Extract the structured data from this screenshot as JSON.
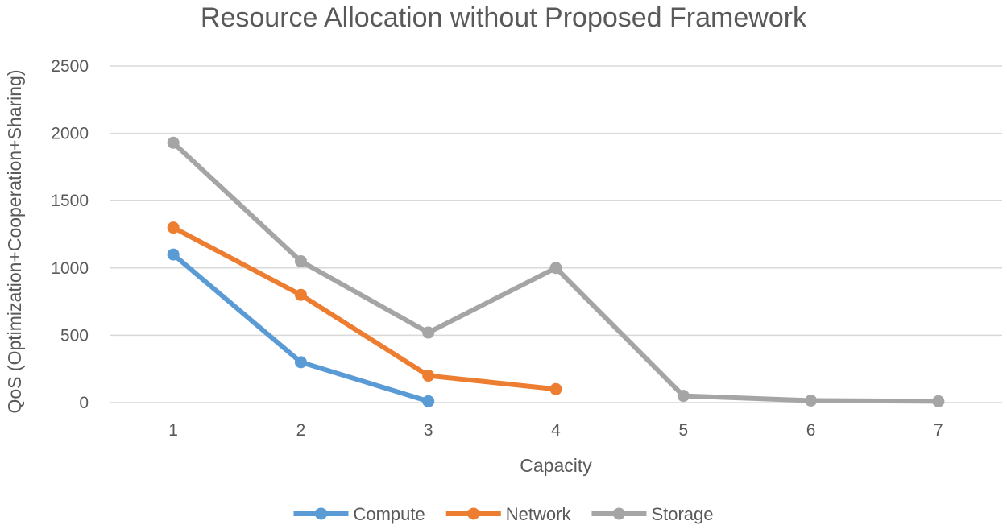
{
  "chart_data": {
    "type": "line",
    "title": "Resource Allocation without Proposed Framework",
    "xlabel": "Capacity",
    "ylabel": "QoS (Optimization+Cooperation+Sharing)",
    "x": [
      1,
      2,
      3,
      4,
      5,
      6,
      7
    ],
    "x_tick_labels": [
      "1",
      "2",
      "3",
      "4",
      "5",
      "6",
      "7"
    ],
    "ylim": [
      0,
      2500
    ],
    "y_ticks": [
      0,
      500,
      1000,
      1500,
      2000,
      2500
    ],
    "y_tick_labels": [
      "0",
      "500",
      "1000",
      "1500",
      "2000",
      "2500"
    ],
    "grid": true,
    "legend_position": "bottom",
    "series": [
      {
        "name": "Compute",
        "color": "#5b9bd5",
        "values": [
          1100,
          300,
          10,
          null,
          null,
          null,
          null
        ]
      },
      {
        "name": "Network",
        "color": "#ed7d31",
        "values": [
          1300,
          800,
          200,
          100,
          null,
          null,
          null
        ]
      },
      {
        "name": "Storage",
        "color": "#a5a5a5",
        "values": [
          1930,
          1050,
          520,
          1000,
          50,
          15,
          10
        ]
      }
    ]
  }
}
